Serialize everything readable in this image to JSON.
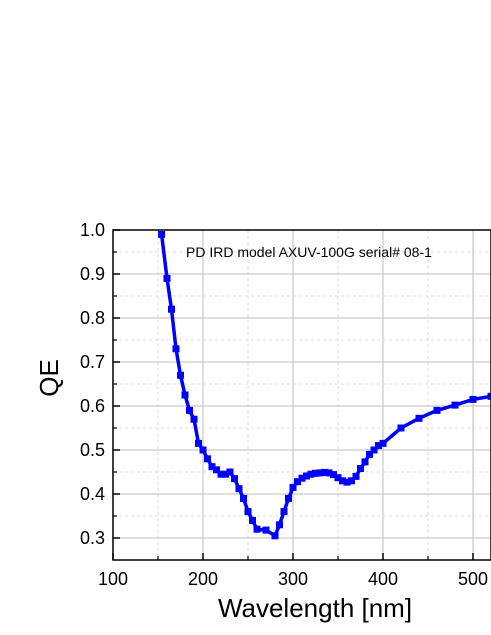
{
  "chart_data": {
    "type": "line",
    "title": "",
    "annotation": "PD IRD model AXUV-100G serial# 08-1",
    "xlabel": "Wavelength [nm]",
    "ylabel": "QE",
    "xlim": [
      100,
      520
    ],
    "ylim": [
      0.25,
      1.0
    ],
    "x_ticks": [
      100,
      200,
      300,
      400,
      500
    ],
    "y_ticks": [
      0.3,
      0.4,
      0.5,
      0.6,
      0.7,
      0.8,
      0.9,
      1.0
    ],
    "x_tick_labels": [
      "100",
      "200",
      "300",
      "400",
      "500"
    ],
    "y_tick_labels": [
      "0.3",
      "0.4",
      "0.5",
      "0.6",
      "0.7",
      "0.8",
      "0.9",
      "1.0"
    ],
    "grid": true,
    "line_color": "#0000ff",
    "series": [
      {
        "marker": "square",
        "x": [
          154,
          160,
          165,
          170,
          175,
          180,
          185,
          190,
          195,
          200,
          205,
          210,
          215,
          220,
          225,
          230,
          235,
          240,
          245,
          250,
          255,
          260,
          270,
          280,
          285,
          290,
          295,
          300,
          305,
          310,
          315,
          320,
          325,
          330,
          335,
          340,
          345,
          350,
          355,
          360,
          365,
          370,
          375,
          380,
          385,
          390,
          395,
          400,
          420,
          440,
          460,
          480,
          500,
          520
        ],
        "y": [
          0.99,
          0.89,
          0.82,
          0.73,
          0.67,
          0.625,
          0.59,
          0.57,
          0.515,
          0.5,
          0.48,
          0.462,
          0.455,
          0.445,
          0.445,
          0.45,
          0.435,
          0.412,
          0.39,
          0.36,
          0.34,
          0.32,
          0.318,
          0.305,
          0.33,
          0.36,
          0.39,
          0.415,
          0.428,
          0.436,
          0.441,
          0.445,
          0.447,
          0.448,
          0.449,
          0.448,
          0.444,
          0.437,
          0.43,
          0.427,
          0.43,
          0.44,
          0.458,
          0.473,
          0.49,
          0.5,
          0.51,
          0.515,
          0.55,
          0.572,
          0.59,
          0.602,
          0.615,
          0.622
        ]
      }
    ]
  }
}
